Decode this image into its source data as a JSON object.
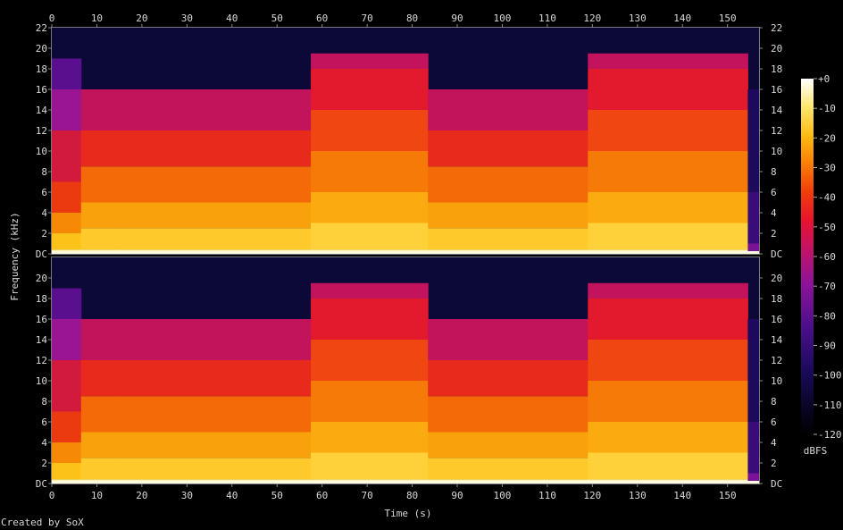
{
  "chart_data": {
    "type": "heatmap",
    "title": "",
    "xlabel": "Time (s)",
    "ylabel": "Frequency (kHz)",
    "x_ticks": [
      0,
      10,
      20,
      30,
      40,
      50,
      60,
      70,
      80,
      90,
      100,
      110,
      120,
      130,
      140,
      150
    ],
    "xlim": [
      0,
      157
    ],
    "y_ticks": [
      "DC",
      "2",
      "4",
      "6",
      "8",
      "10",
      "12",
      "14",
      "16",
      "18",
      "20",
      "22"
    ],
    "ylim": [
      0,
      22
    ],
    "channels": 2,
    "colorbar": {
      "label": "dBFS",
      "ticks": [
        "+0",
        "-10",
        "-20",
        "-30",
        "-40",
        "-50",
        "-60",
        "-70",
        "-80",
        "-90",
        "-100",
        "-110",
        "-120"
      ],
      "range": [
        -120,
        0
      ]
    },
    "segments": [
      {
        "t0": 0,
        "t1": 6.5,
        "cutoff_khz": 19,
        "level": "low"
      },
      {
        "t0": 6.5,
        "t1": 14.5,
        "cutoff_khz": 16,
        "level": "mid"
      },
      {
        "t0": 14.5,
        "t1": 57.5,
        "cutoff_khz": 16,
        "level": "mid"
      },
      {
        "t0": 57.5,
        "t1": 83.5,
        "cutoff_khz": 19.5,
        "level": "high"
      },
      {
        "t0": 83.5,
        "t1": 119,
        "cutoff_khz": 16,
        "level": "mid"
      },
      {
        "t0": 119,
        "t1": 154.5,
        "cutoff_khz": 19.5,
        "level": "high"
      },
      {
        "t0": 154.5,
        "t1": 157,
        "cutoff_khz": 0,
        "level": "fade"
      }
    ]
  },
  "footer": {
    "credit": "Created by SoX"
  }
}
